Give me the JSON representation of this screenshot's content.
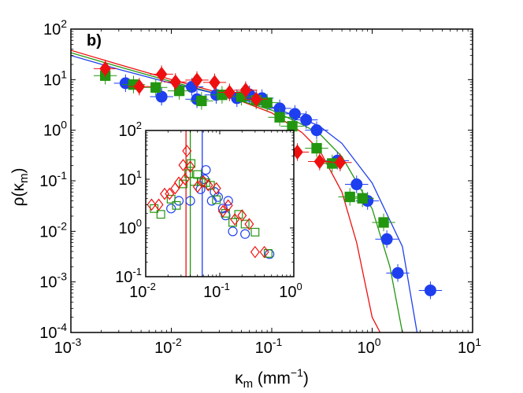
{
  "chart_data": [
    {
      "id": "main",
      "type": "scatter",
      "panel_label": "b)",
      "xlabel": "κ",
      "xlabel_sub": "m",
      "xlabel_unit_open": " (mm",
      "xlabel_unit_sup": "−1",
      "xlabel_unit_close": ")",
      "ylabel": "ρ(κ",
      "ylabel_sub": "m",
      "ylabel_close": ")",
      "x_scale": "log",
      "y_scale": "log",
      "xlim": [
        0.001,
        10
      ],
      "ylim": [
        0.0001,
        100
      ],
      "x_ticks": [
        {
          "base": "10",
          "exp": "-3"
        },
        {
          "base": "10",
          "exp": "-2"
        },
        {
          "base": "10",
          "exp": "-1"
        },
        {
          "base": "10",
          "exp": "0"
        },
        {
          "base": "10",
          "exp": "1"
        }
      ],
      "y_ticks": [
        {
          "base": "10",
          "exp": "-4"
        },
        {
          "base": "10",
          "exp": "-3"
        },
        {
          "base": "10",
          "exp": "-2"
        },
        {
          "base": "10",
          "exp": "-1"
        },
        {
          "base": "10",
          "exp": "0"
        },
        {
          "base": "10",
          "exp": "1"
        },
        {
          "base": "10",
          "exp": "2"
        }
      ],
      "grid": false,
      "legend": "none",
      "series": [
        {
          "marker": "circle",
          "color": "#1e3ff0",
          "points": [
            [
              0.0035,
              8.5
            ],
            [
              0.008,
              4.6
            ],
            [
              0.016,
              7.2
            ],
            [
              0.018,
              4.1
            ],
            [
              0.028,
              5.0
            ],
            [
              0.045,
              4.3
            ],
            [
              0.06,
              5.1
            ],
            [
              0.08,
              4.3
            ],
            [
              0.12,
              2.7
            ],
            [
              0.17,
              2.1
            ],
            [
              0.22,
              1.6
            ],
            [
              0.28,
              1.0
            ],
            [
              0.45,
              0.25
            ],
            [
              0.7,
              0.085
            ],
            [
              0.9,
              0.04
            ],
            [
              1.4,
              0.007
            ],
            [
              1.8,
              0.0015
            ],
            [
              3.8,
              0.00068
            ]
          ]
        },
        {
          "marker": "square",
          "color": "#23960f",
          "points": [
            [
              0.0022,
              12.0
            ],
            [
              0.0042,
              8.0
            ],
            [
              0.007,
              7.0
            ],
            [
              0.012,
              6.0
            ],
            [
              0.02,
              3.8
            ],
            [
              0.032,
              5.0
            ],
            [
              0.05,
              4.6
            ],
            [
              0.07,
              3.9
            ],
            [
              0.09,
              3.5
            ],
            [
              0.12,
              1.8
            ],
            [
              0.16,
              1.2
            ],
            [
              0.28,
              0.44
            ],
            [
              0.4,
              0.22
            ],
            [
              0.6,
              0.048
            ],
            [
              0.8,
              0.045
            ],
            [
              1.3,
              0.015
            ]
          ]
        },
        {
          "marker": "diamond",
          "color": "#ee1010",
          "points": [
            [
              0.0022,
              16.5
            ],
            [
              0.0048,
              7.3
            ],
            [
              0.008,
              12.8
            ],
            [
              0.011,
              9.0
            ],
            [
              0.018,
              9.8
            ],
            [
              0.027,
              8.8
            ],
            [
              0.038,
              5.6
            ],
            [
              0.055,
              6.2
            ],
            [
              0.07,
              4.1
            ],
            [
              0.18,
              0.37
            ],
            [
              0.3,
              0.24
            ],
            [
              0.48,
              0.23
            ]
          ]
        }
      ],
      "fit_lines": [
        {
          "color": "#ee1010",
          "points": [
            [
              0.001,
              38
            ],
            [
              0.003,
              20
            ],
            [
              0.01,
              10
            ],
            [
              0.03,
              5.5
            ],
            [
              0.1,
              2.2
            ],
            [
              0.2,
              0.9
            ],
            [
              0.3,
              0.4
            ],
            [
              0.5,
              0.06
            ],
            [
              0.7,
              0.006
            ],
            [
              1.0,
              0.0002
            ],
            [
              1.2,
              0.0001
            ]
          ]
        },
        {
          "color": "#23960f",
          "points": [
            [
              0.001,
              34
            ],
            [
              0.003,
              18
            ],
            [
              0.01,
              9.2
            ],
            [
              0.03,
              5.1
            ],
            [
              0.1,
              2.5
            ],
            [
              0.2,
              1.3
            ],
            [
              0.3,
              0.85
            ],
            [
              0.5,
              0.3
            ],
            [
              1.0,
              0.028
            ],
            [
              1.5,
              0.002
            ],
            [
              2.0,
              0.0001
            ]
          ]
        },
        {
          "color": "#1e3ff0",
          "points": [
            [
              0.001,
              30
            ],
            [
              0.003,
              16
            ],
            [
              0.01,
              8.5
            ],
            [
              0.03,
              5.1
            ],
            [
              0.1,
              2.9
            ],
            [
              0.2,
              1.7
            ],
            [
              0.3,
              1.2
            ],
            [
              0.5,
              0.55
            ],
            [
              1.0,
              0.09
            ],
            [
              2.0,
              0.005
            ],
            [
              2.8,
              0.0001
            ]
          ]
        }
      ]
    },
    {
      "id": "inset",
      "type": "scatter",
      "x_scale": "log",
      "y_scale": "log",
      "xlim": [
        0.01,
        1
      ],
      "ylim": [
        0.1,
        100
      ],
      "x_ticks": [
        {
          "base": "10",
          "exp": "-2"
        },
        {
          "base": "10",
          "exp": "-1"
        },
        {
          "base": "10",
          "exp": "0"
        }
      ],
      "y_ticks": [
        {
          "base": "10",
          "exp": "-1"
        },
        {
          "base": "10",
          "exp": "0"
        },
        {
          "base": "10",
          "exp": "1"
        },
        {
          "base": "10",
          "exp": "2"
        }
      ],
      "grid": false,
      "legend": "none",
      "vlines": [
        {
          "color": "#ee1010",
          "x": 0.035
        },
        {
          "color": "#23960f",
          "x": 0.04
        },
        {
          "color": "#1e3ff0",
          "x": 0.058
        }
      ],
      "series": [
        {
          "marker": "circle-open",
          "color": "#1e3ff0",
          "points": [
            [
              0.022,
              2.5
            ],
            [
              0.028,
              3.6
            ],
            [
              0.04,
              3.6
            ],
            [
              0.055,
              6.2
            ],
            [
              0.062,
              10.0
            ],
            [
              0.065,
              15.5
            ],
            [
              0.078,
              3.6
            ],
            [
              0.085,
              5.5
            ],
            [
              0.095,
              4.3
            ],
            [
              0.11,
              2.5
            ],
            [
              0.12,
              1.8
            ],
            [
              0.13,
              3.6
            ],
            [
              0.15,
              0.85
            ],
            [
              0.22,
              0.75
            ],
            [
              0.47,
              0.29
            ]
          ]
        },
        {
          "marker": "square-open",
          "color": "#23960f",
          "points": [
            [
              0.013,
              2.5
            ],
            [
              0.016,
              1.9
            ],
            [
              0.022,
              3.9
            ],
            [
              0.026,
              2.9
            ],
            [
              0.032,
              8.0
            ],
            [
              0.038,
              13.0
            ],
            [
              0.041,
              21.0
            ],
            [
              0.045,
              9.0
            ],
            [
              0.05,
              12.5
            ],
            [
              0.056,
              9.0
            ],
            [
              0.065,
              8.5
            ],
            [
              0.075,
              7.5
            ],
            [
              0.09,
              3.8
            ],
            [
              0.12,
              2.0
            ],
            [
              0.15,
              1.3
            ],
            [
              0.18,
              1.9
            ],
            [
              0.22,
              1.2
            ],
            [
              0.3,
              0.82
            ],
            [
              0.45,
              0.3
            ]
          ]
        },
        {
          "marker": "diamond-open",
          "color": "#ee1010",
          "points": [
            [
              0.012,
              3.0
            ],
            [
              0.015,
              3.0
            ],
            [
              0.018,
              5.0
            ],
            [
              0.021,
              5.0
            ],
            [
              0.025,
              6.5
            ],
            [
              0.028,
              8.5
            ],
            [
              0.032,
              19.5
            ],
            [
              0.034,
              10.0
            ],
            [
              0.036,
              38.0
            ],
            [
              0.04,
              18.0
            ],
            [
              0.05,
              7.0
            ],
            [
              0.06,
              9.0
            ],
            [
              0.07,
              7.5
            ],
            [
              0.09,
              6.5
            ],
            [
              0.11,
              2.2
            ],
            [
              0.13,
              2.9
            ],
            [
              0.16,
              1.5
            ],
            [
              0.2,
              1.8
            ],
            [
              0.25,
              1.2
            ],
            [
              0.3,
              0.32
            ],
            [
              0.4,
              0.32
            ]
          ]
        }
      ]
    }
  ]
}
